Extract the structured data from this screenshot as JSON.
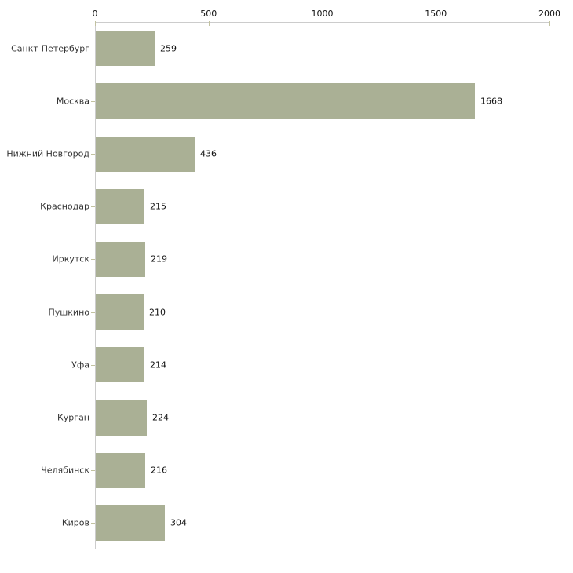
{
  "chart_data": {
    "type": "bar",
    "orientation": "horizontal",
    "title": "",
    "xlabel": "",
    "ylabel": "",
    "categories": [
      "Санкт-Петербург",
      "Москва",
      "Нижний Новгород",
      "Краснодар",
      "Иркутск",
      "Пушкино",
      "Уфа",
      "Курган",
      "Челябинск",
      "Киров"
    ],
    "values": [
      259,
      1668,
      436,
      215,
      219,
      210,
      214,
      224,
      216,
      304
    ],
    "value_labels": [
      "259",
      "1668",
      "436",
      "215",
      "219",
      "210",
      "214",
      "224",
      "216",
      "304"
    ],
    "xlim": [
      0,
      2000
    ],
    "x_ticks": [
      0,
      500,
      1000,
      1500,
      2000
    ],
    "x_tick_labels": [
      "0",
      "500",
      "1000",
      "1500",
      "2000"
    ],
    "axis_position": "top",
    "grid": false,
    "legend": null,
    "colors": {
      "bar_fill": "#aab095",
      "axis_line": "#cccccc",
      "tick_mark": "#c2c2a0",
      "category_text": "#333333",
      "value_text": "#111111",
      "tick_text": "#111111",
      "background": "#ffffff"
    }
  }
}
